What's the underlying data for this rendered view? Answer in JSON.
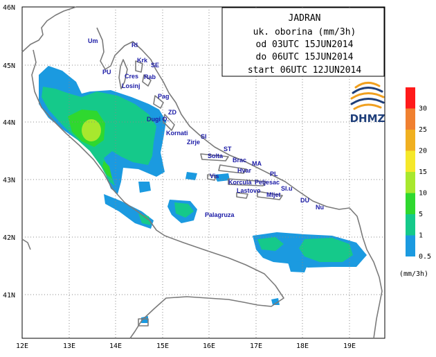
{
  "title_box": {
    "lines": [
      "JADRAN",
      "uk. oborina (mm/3h)",
      "od 03UTC 15JUN2014",
      "do 06UTC 15JUN2014",
      "start 06UTC 12JUN2014"
    ]
  },
  "logo": {
    "text": "DHMZ",
    "colors": [
      "#1f3f7a",
      "#f0a020"
    ]
  },
  "axes": {
    "lat_labels": [
      "46N",
      "45N",
      "44N",
      "43N",
      "42N",
      "41N"
    ],
    "lon_labels": [
      "12E",
      "13E",
      "14E",
      "15E",
      "16E",
      "17E",
      "18E",
      "19E"
    ]
  },
  "places": [
    "Um",
    "RI",
    "Krk",
    "SE",
    "PU",
    "Cres",
    "Rab",
    "Losinj",
    "Pag",
    "ZD",
    "Dugi O.",
    "Kornati",
    "SI",
    "Zirje",
    "ST",
    "Solta",
    "Brac",
    "MA",
    "Vis",
    "Hvar",
    "PL",
    "Korcula",
    "Peljesac",
    "Lastovo",
    "SI.u",
    "Mljet",
    "DU",
    "Nu",
    "Palagruza"
  ],
  "legend": {
    "unit": "(mm/3h)",
    "bins": [
      {
        "label": "0.5",
        "color": "#1b9ae0"
      },
      {
        "label": "1",
        "color": "#15c98a"
      },
      {
        "label": "5",
        "color": "#2fd82f"
      },
      {
        "label": "10",
        "color": "#a8e82e"
      },
      {
        "label": "15",
        "color": "#f5e82a"
      },
      {
        "label": "20",
        "color": "#f0b020"
      },
      {
        "label": "25",
        "color": "#f08030"
      },
      {
        "label": "30",
        "color": "#ff1a1a"
      }
    ]
  },
  "colors": {
    "land_outline": "#7a7a7a",
    "grid": "#888888",
    "rain_light": "#1b9ae0",
    "rain_moderate": "#15c98a",
    "rain_heavy": "#2fd82f",
    "rain_peak": "#a8e82e",
    "place_text": "#1a1aa6"
  }
}
